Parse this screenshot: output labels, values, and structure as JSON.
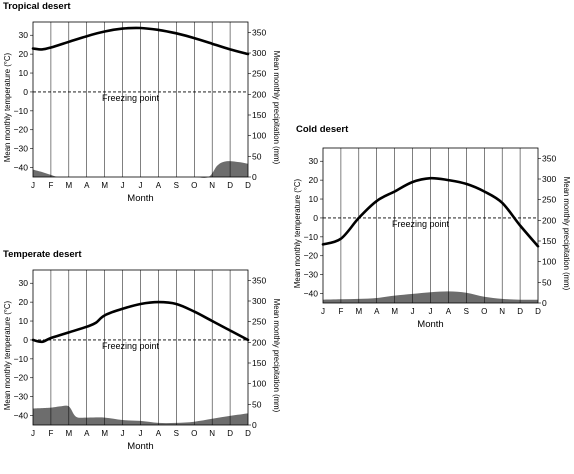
{
  "chart_data": [
    {
      "type": "line",
      "title": "Tropical desert",
      "xlabel": "Month",
      "ylabel": "Mean monthly temperature (°C)",
      "y2label": "Mean monthly precipitation (mm)",
      "categories": [
        "J",
        "F",
        "M",
        "A",
        "M",
        "J",
        "J",
        "A",
        "S",
        "O",
        "N",
        "D"
      ],
      "ylim": [
        -45,
        37
      ],
      "y_ticks": [
        30,
        20,
        10,
        0,
        -10,
        -20,
        -30,
        -40
      ],
      "y2lim": [
        0,
        375
      ],
      "y2_ticks": [
        350,
        300,
        250,
        200,
        150,
        100,
        50,
        0
      ],
      "annotation": "Freezing point",
      "freezing_value": 0,
      "temperature": {
        "x": [
          0,
          0.5,
          1,
          2,
          3,
          4,
          5,
          6,
          7,
          8,
          9,
          10,
          11,
          12
        ],
        "values": [
          23,
          22.5,
          23.5,
          26.5,
          29.5,
          32,
          33.5,
          33.8,
          32.8,
          31,
          28.5,
          25.5,
          22.5,
          20
        ]
      },
      "precipitation": {
        "x": [
          0,
          0.5,
          1,
          1.4,
          2,
          3,
          4,
          5,
          6,
          7,
          8,
          9,
          9.8,
          10.3,
          10.8,
          11.5,
          12
        ],
        "values": [
          18,
          12,
          5,
          0,
          0,
          0,
          0,
          0,
          0,
          0,
          0,
          0,
          0,
          28,
          38,
          36,
          32
        ]
      },
      "grid": "vertical month lines",
      "colors": {
        "line": "#000000",
        "area": "#6d6d6d"
      }
    },
    {
      "type": "line",
      "title": "Cold desert",
      "xlabel": "Month",
      "ylabel": "Mean monthly temperature (°C)",
      "y2label": "Mean monthly precipitation (mm)",
      "categories": [
        "J",
        "F",
        "M",
        "A",
        "M",
        "J",
        "J",
        "A",
        "S",
        "O",
        "N",
        "D"
      ],
      "ylim": [
        -45,
        37
      ],
      "y_ticks": [
        30,
        20,
        10,
        0,
        -10,
        -20,
        -30,
        -40
      ],
      "y2lim": [
        0,
        375
      ],
      "y2_ticks": [
        350,
        300,
        250,
        200,
        150,
        100,
        50,
        0
      ],
      "annotation": "Freezing point",
      "freezing_value": 0,
      "temperature": {
        "x": [
          0,
          1,
          2,
          3,
          4,
          5,
          6,
          7,
          8,
          9,
          10,
          11,
          12
        ],
        "values": [
          -14,
          -11,
          0,
          9,
          14,
          19,
          21,
          20,
          18,
          14,
          8,
          -4,
          -15
        ]
      },
      "precipitation": {
        "x": [
          0,
          1,
          2,
          3,
          4,
          5,
          6,
          7,
          8,
          9,
          10,
          11,
          12
        ],
        "values": [
          8,
          9,
          10,
          12,
          18,
          22,
          26,
          28,
          25,
          15,
          10,
          8,
          8
        ]
      },
      "grid": "vertical month lines",
      "colors": {
        "line": "#000000",
        "area": "#6d6d6d"
      }
    },
    {
      "type": "line",
      "title": "Temperate desert",
      "xlabel": "Month",
      "ylabel": "Mean monthly temperature (°C)",
      "y2label": "Mean monthly precipitation (mm)",
      "categories": [
        "J",
        "F",
        "M",
        "A",
        "M",
        "J",
        "J",
        "A",
        "S",
        "O",
        "N",
        "D"
      ],
      "ylim": [
        -45,
        37
      ],
      "y_ticks": [
        30,
        20,
        10,
        0,
        -10,
        -20,
        -30,
        -40
      ],
      "y2lim": [
        0,
        375
      ],
      "y2_ticks": [
        350,
        300,
        250,
        200,
        150,
        100,
        50,
        0
      ],
      "annotation": "Freezing point",
      "freezing_value": 0,
      "temperature": {
        "x": [
          0,
          0.5,
          1,
          2,
          3,
          3.5,
          4,
          5,
          6,
          7,
          8,
          9,
          10,
          11,
          12
        ],
        "values": [
          0,
          -1,
          1,
          4,
          7,
          9,
          13,
          16.5,
          19,
          20,
          19,
          15,
          10,
          5,
          0
        ]
      },
      "precipitation": {
        "x": [
          0,
          1,
          1.5,
          2,
          2.4,
          3,
          4,
          5,
          6,
          7,
          8,
          9,
          10,
          11,
          12
        ],
        "values": [
          40,
          42,
          45,
          45,
          20,
          18,
          18,
          12,
          10,
          5,
          5,
          8,
          15,
          22,
          28
        ]
      },
      "grid": "vertical month lines",
      "colors": {
        "line": "#000000",
        "area": "#6d6d6d"
      }
    }
  ]
}
